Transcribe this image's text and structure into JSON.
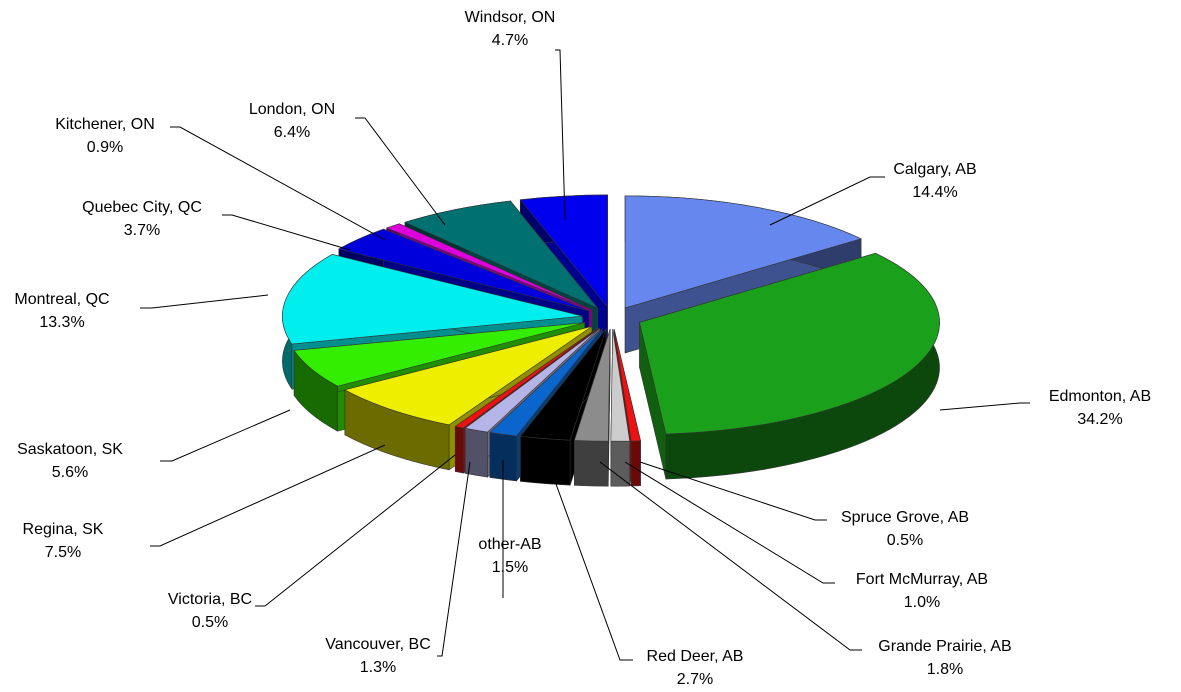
{
  "chart_data": {
    "type": "pie3d",
    "categories": [
      "Calgary, AB",
      "Edmonton, AB",
      "Spruce Grove, AB",
      "Fort McMurray, AB",
      "Grande Prairie, AB",
      "Red Deer, AB",
      "other-AB",
      "Vancouver, BC",
      "Victoria, BC",
      "Regina, SK",
      "Saskatoon, SK",
      "Montreal, QC",
      "Quebec City, QC",
      "Kitchener, ON",
      "London, ON",
      "Windsor, ON"
    ],
    "values": [
      14.4,
      34.2,
      0.5,
      1.0,
      1.8,
      2.7,
      1.5,
      1.3,
      0.5,
      7.5,
      5.6,
      13.3,
      3.7,
      0.9,
      6.4,
      4.7
    ],
    "value_labels": [
      "14.4%",
      "34.2%",
      "0.5%",
      "1.0%",
      "1.8%",
      "2.7%",
      "1.5%",
      "1.3%",
      "0.5%",
      "7.5%",
      "5.6%",
      "13.3%",
      "3.7%",
      "0.9%",
      "6.4%",
      "4.7%"
    ],
    "colors": [
      "#6688ee",
      "#1aa01a",
      "#ee1111",
      "#cccccc",
      "#8c8c8c",
      "#000000",
      "#0a66cc",
      "#b4b4e6",
      "#ee1111",
      "#eeee00",
      "#33ee00",
      "#00eeee",
      "#0000dd",
      "#dd00dd",
      "#007070",
      "#0000ee"
    ]
  }
}
